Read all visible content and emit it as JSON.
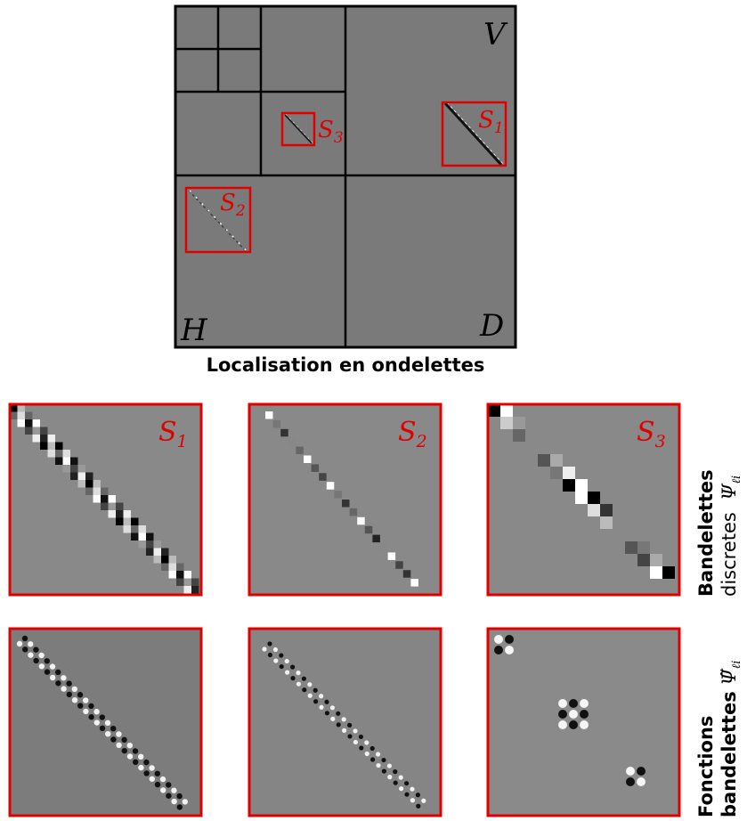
{
  "wavelet_panel": {
    "labels": {
      "v": "V",
      "h": "H",
      "d": "D"
    },
    "boxes": [
      {
        "name": "S",
        "sub": "1"
      },
      {
        "name": "S",
        "sub": "2"
      },
      {
        "name": "S",
        "sub": "3"
      }
    ],
    "caption": "Localisation en ondelettes"
  },
  "rows": [
    {
      "label_line1": "Bandelettes",
      "label_line2": "discretes",
      "symbol": "Ψ",
      "symbol_sub": "ℓi",
      "tiles": [
        {
          "name": "S",
          "sub": "1"
        },
        {
          "name": "S",
          "sub": "2"
        },
        {
          "name": "S",
          "sub": "3"
        }
      ]
    },
    {
      "label_line1": "Fonctions",
      "label_line2": "bandelettes",
      "symbol": "Ψ̃",
      "symbol_sub": "ℓi",
      "tiles": []
    }
  ],
  "colors": {
    "gray_bg": "#7a7a7a",
    "tile_bg": "#888888",
    "highlight": "#e00000",
    "line": "#000000"
  }
}
